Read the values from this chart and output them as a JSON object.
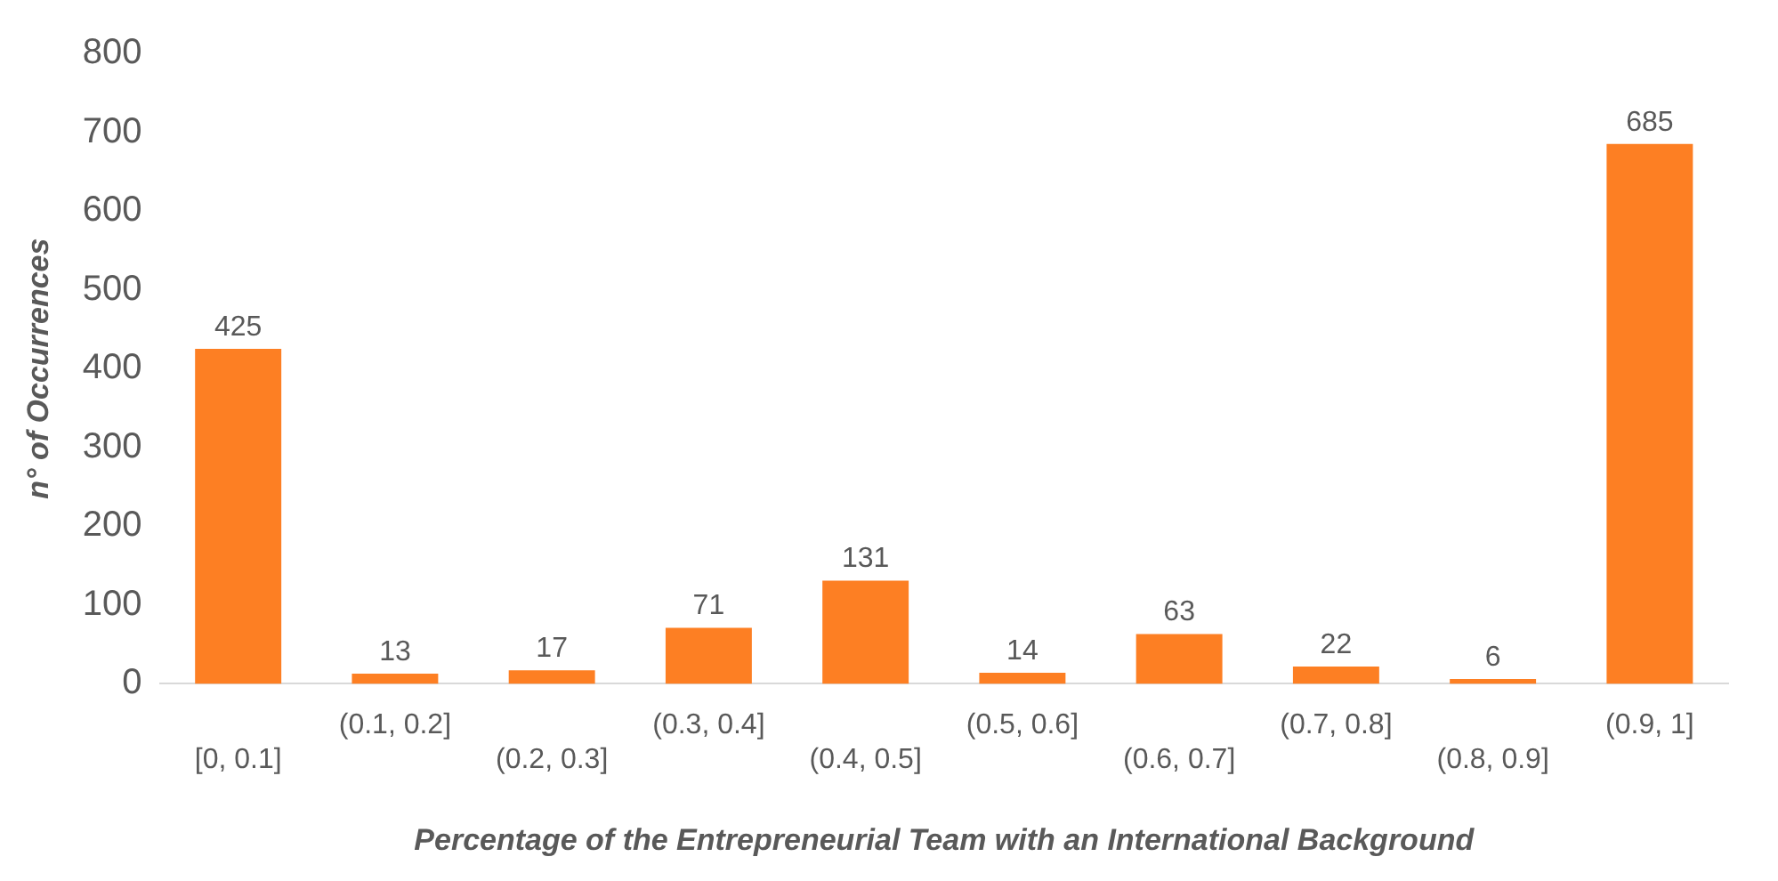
{
  "chart_data": {
    "type": "bar",
    "xlabel": "Percentage of the Entrepreneurial Team with an International Background",
    "ylabel": "n° of Occurrences",
    "categories": [
      "[0, 0.1]",
      "(0.1, 0.2]",
      "(0.2, 0.3]",
      "(0.3, 0.4]",
      "(0.4, 0.5]",
      "(0.5, 0.6]",
      "(0.6, 0.7]",
      "(0.7, 0.8]",
      "(0.8, 0.9]",
      "(0.9, 1]"
    ],
    "values": [
      425,
      13,
      17,
      71,
      131,
      14,
      63,
      22,
      6,
      685
    ],
    "color": "#fd7f23",
    "ylim": [
      0,
      800
    ],
    "yticks": [
      0,
      100,
      200,
      300,
      400,
      500,
      600,
      700,
      800
    ],
    "grid": false,
    "legend": false,
    "data_labels": true
  }
}
